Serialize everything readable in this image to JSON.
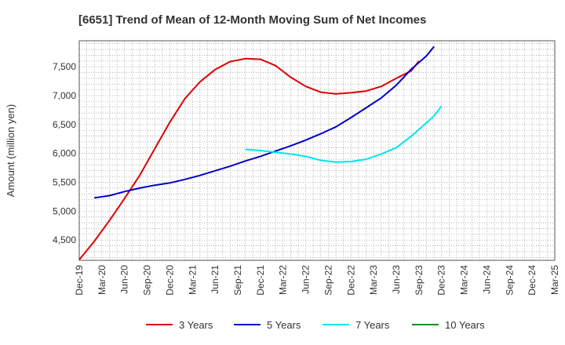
{
  "chart_data": {
    "type": "line",
    "title": "[6651]  Trend of Mean of 12-Month Moving Sum of Net Incomes",
    "xlabel": "",
    "ylabel": "Amount (million yen)",
    "x_ticks": [
      "Dec-19",
      "Mar-20",
      "Jun-20",
      "Sep-20",
      "Dec-20",
      "Mar-21",
      "Jun-21",
      "Sep-21",
      "Dec-21",
      "Mar-22",
      "Jun-22",
      "Sep-22",
      "Dec-22",
      "Mar-23",
      "Jun-23",
      "Sep-23",
      "Dec-23",
      "Mar-24",
      "Jun-24",
      "Sep-24",
      "Dec-24",
      "Mar-25"
    ],
    "y_ticks": [
      "4,500",
      "5,000",
      "5,500",
      "6,000",
      "6,500",
      "7,000",
      "7,500"
    ],
    "ylim": [
      4150,
      7950
    ],
    "grid": true,
    "legend_position": "bottom",
    "series": [
      {
        "name": "3 Years",
        "color": "#dd0000",
        "values": [
          [
            0,
            4160
          ],
          [
            2,
            4480
          ],
          [
            4,
            4840
          ],
          [
            6,
            5220
          ],
          [
            8,
            5620
          ],
          [
            10,
            6080
          ],
          [
            12,
            6540
          ],
          [
            14,
            6950
          ],
          [
            16,
            7240
          ],
          [
            18,
            7450
          ],
          [
            20,
            7590
          ],
          [
            22,
            7640
          ],
          [
            24,
            7630
          ],
          [
            26,
            7520
          ],
          [
            28,
            7320
          ],
          [
            30,
            7160
          ],
          [
            32,
            7060
          ],
          [
            34,
            7030
          ],
          [
            36,
            7050
          ],
          [
            38,
            7080
          ],
          [
            40,
            7160
          ],
          [
            42,
            7300
          ],
          [
            44,
            7430
          ],
          [
            45,
            7600
          ]
        ]
      },
      {
        "name": "5 Years",
        "color": "#0000cc",
        "values": [
          [
            2,
            5230
          ],
          [
            4,
            5270
          ],
          [
            6,
            5340
          ],
          [
            8,
            5400
          ],
          [
            10,
            5450
          ],
          [
            12,
            5490
          ],
          [
            14,
            5550
          ],
          [
            16,
            5620
          ],
          [
            18,
            5700
          ],
          [
            20,
            5780
          ],
          [
            22,
            5870
          ],
          [
            24,
            5950
          ],
          [
            26,
            6040
          ],
          [
            28,
            6130
          ],
          [
            30,
            6230
          ],
          [
            32,
            6340
          ],
          [
            34,
            6460
          ],
          [
            36,
            6620
          ],
          [
            38,
            6790
          ],
          [
            40,
            6960
          ],
          [
            42,
            7180
          ],
          [
            44,
            7460
          ],
          [
            46,
            7690
          ],
          [
            47,
            7850
          ]
        ]
      },
      {
        "name": "7 Years",
        "color": "#00e5ee",
        "values": [
          [
            22,
            6070
          ],
          [
            24,
            6050
          ],
          [
            26,
            6020
          ],
          [
            28,
            5990
          ],
          [
            30,
            5950
          ],
          [
            32,
            5880
          ],
          [
            34,
            5850
          ],
          [
            36,
            5860
          ],
          [
            38,
            5900
          ],
          [
            40,
            5990
          ],
          [
            42,
            6100
          ],
          [
            44,
            6300
          ],
          [
            46,
            6530
          ],
          [
            47,
            6650
          ],
          [
            48,
            6820
          ]
        ]
      },
      {
        "name": "10 Years",
        "color": "#228b22",
        "values": []
      }
    ]
  }
}
